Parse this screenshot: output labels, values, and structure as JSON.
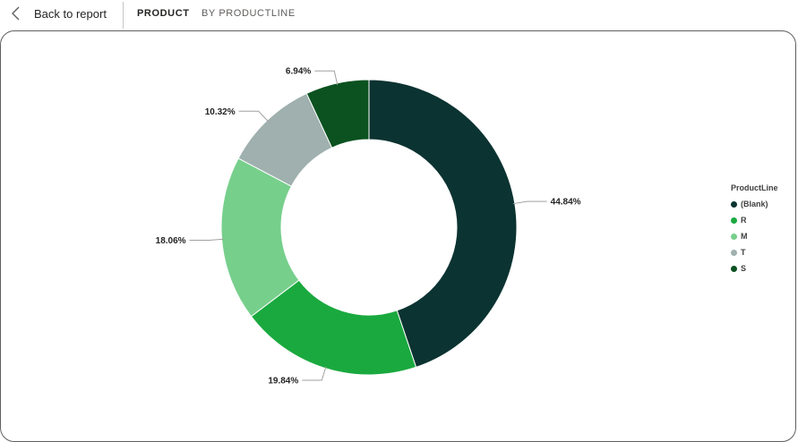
{
  "nav": {
    "back_label": "Back to report",
    "tabs": [
      {
        "label": "PRODUCT",
        "active": true
      },
      {
        "label": "BY PRODUCTLINE",
        "active": false
      }
    ]
  },
  "icons": {
    "back": "chevron-left-icon"
  },
  "chart_data": {
    "type": "pie",
    "variant": "donut",
    "legend_title": "ProductLine",
    "legend_placement": "right",
    "slices": [
      {
        "label": "(Blank)",
        "value": 44.84,
        "display": "44.84%",
        "color": "#0b3331"
      },
      {
        "label": "R",
        "value": 19.84,
        "display": "19.84%",
        "color": "#1aa93f"
      },
      {
        "label": "M",
        "value": 18.06,
        "display": "18.06%",
        "color": "#77cf8c"
      },
      {
        "label": "T",
        "value": 10.32,
        "display": "10.32%",
        "color": "#9fb0ae"
      },
      {
        "label": "S",
        "value": 6.94,
        "display": "6.94%",
        "color": "#0b5220"
      }
    ]
  }
}
